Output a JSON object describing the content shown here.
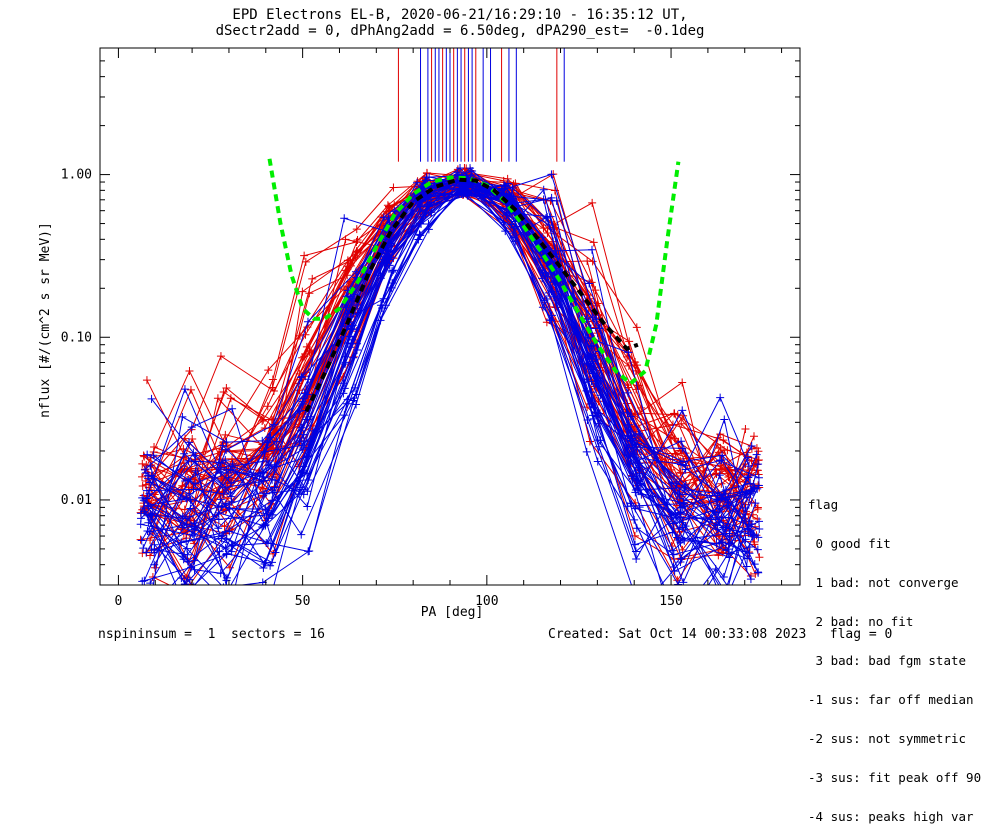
{
  "header": {
    "title_line1": "EPD Electrons EL-B, 2020-06-21/16:29:10 - 16:35:12 UT,",
    "title_line2": "dSectr2add = 0, dPhAng2add = 6.50deg, dPA290_est=  -0.1deg"
  },
  "footer": {
    "left": "nspininsum =  1  sectors = 16",
    "right": "Created: Sat Oct 14 00:33:08 2023   flag = 0"
  },
  "legend": {
    "title": "flag",
    "items": [
      " 0 good fit",
      " 1 bad: not converge",
      " 2 bad: no fit",
      " 3 bad: bad fgm state",
      "-1 sus: far off median",
      "-2 sus: not symmetric",
      "-3 sus: fit peak off 90",
      "-4 sus: peaks high var"
    ]
  },
  "colors": {
    "red": "#e00000",
    "blue": "#0000e0",
    "green": "#00ee00",
    "black": "#000000"
  },
  "chart_data": {
    "type": "line",
    "xlabel": "PA [deg]",
    "ylabel": "nflux [#/(cm^2 s sr MeV)]",
    "xlim": [
      -5,
      185
    ],
    "ylim": [
      0.003,
      6.0
    ],
    "yscale": "log",
    "x_ticks": [
      0,
      50,
      100,
      150
    ],
    "x_tick_labels": [
      "0",
      "50",
      "100",
      "150"
    ],
    "y_ticks": [
      0.01,
      0.1,
      1.0
    ],
    "y_tick_labels": [
      "0.01",
      "0.10",
      "1.00"
    ],
    "pa_bins": [
      8,
      19,
      29,
      41,
      51,
      63,
      73,
      83,
      94,
      106,
      117,
      129,
      140,
      152,
      164,
      172
    ],
    "series": [
      {
        "color": "#00ee00",
        "style": "dashed-thick",
        "x": [
          41,
          44,
          47,
          50,
          53,
          56,
          60,
          65,
          70,
          75,
          80,
          85,
          90,
          95,
          100,
          105,
          110,
          115,
          120,
          125,
          130,
          135,
          139,
          143,
          146,
          149,
          152
        ],
        "y": [
          1.25,
          0.5,
          0.24,
          0.15,
          0.13,
          0.13,
          0.15,
          0.22,
          0.36,
          0.57,
          0.76,
          0.9,
          0.96,
          0.95,
          0.86,
          0.68,
          0.48,
          0.33,
          0.22,
          0.14,
          0.09,
          0.062,
          0.052,
          0.062,
          0.12,
          0.4,
          1.2
        ]
      },
      {
        "color": "#000000",
        "style": "dashed-thick",
        "x": [
          51,
          56,
          62,
          68,
          74,
          80,
          86,
          92,
          97,
          102,
          108,
          114,
          120,
          126,
          132,
          138,
          141
        ],
        "y": [
          0.035,
          0.06,
          0.12,
          0.25,
          0.45,
          0.68,
          0.84,
          0.93,
          0.92,
          0.8,
          0.6,
          0.4,
          0.27,
          0.18,
          0.12,
          0.085,
          0.09
        ]
      }
    ]
  }
}
